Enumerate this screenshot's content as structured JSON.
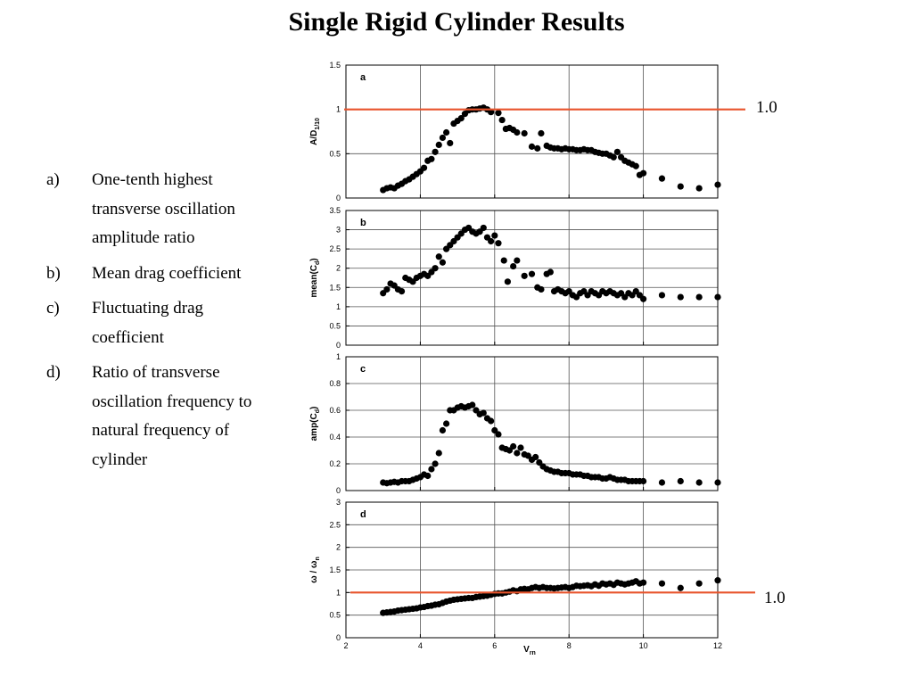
{
  "slide": {
    "title": "Single Rigid Cylinder Results",
    "legend": [
      {
        "letter": "a)",
        "text": "One-tenth highest transverse oscillation amplitude ratio"
      },
      {
        "letter": "b)",
        "text": "Mean drag coefficient"
      },
      {
        "letter": "c)",
        "text": "Fluctuating drag coefficient"
      },
      {
        "letter": "d)",
        "text": "Ratio of transverse oscillation frequency to natural frequency of cylinder"
      }
    ]
  },
  "colors": {
    "marker": "#000000",
    "reference_line": "#e8542c",
    "grid": "#555555",
    "frame": "#000000"
  },
  "chart_data": [
    {
      "type": "scatter",
      "panel_label": "a",
      "ylabel_main": "A/D",
      "ylabel_sub": "1/10",
      "xlim": [
        2,
        12
      ],
      "ylim": [
        0,
        1.5
      ],
      "yticks": [
        0,
        0.5,
        1,
        1.5
      ],
      "yticklabels": [
        "0",
        "0.5",
        "1",
        "1.5"
      ],
      "grid": true,
      "reference_line": {
        "y": 1.0,
        "label": "1.0"
      },
      "x": [
        3.0,
        3.1,
        3.2,
        3.3,
        3.4,
        3.5,
        3.6,
        3.7,
        3.8,
        3.9,
        4.0,
        4.1,
        4.2,
        4.3,
        4.4,
        4.5,
        4.6,
        4.7,
        4.8,
        4.9,
        5.0,
        5.1,
        5.2,
        5.3,
        5.4,
        5.5,
        5.6,
        5.7,
        5.8,
        5.9,
        6.1,
        6.2,
        6.3,
        6.4,
        6.5,
        6.6,
        6.8,
        7.0,
        7.15,
        7.25,
        7.4,
        7.5,
        7.6,
        7.7,
        7.8,
        7.9,
        8.0,
        8.1,
        8.2,
        8.3,
        8.4,
        8.5,
        8.6,
        8.7,
        8.8,
        8.9,
        9.0,
        9.1,
        9.2,
        9.3,
        9.4,
        9.5,
        9.6,
        9.7,
        9.8,
        9.9,
        10.0,
        10.5,
        11.0,
        11.5,
        12.0
      ],
      "y": [
        0.09,
        0.11,
        0.12,
        0.11,
        0.14,
        0.16,
        0.19,
        0.21,
        0.24,
        0.27,
        0.3,
        0.34,
        0.42,
        0.44,
        0.52,
        0.6,
        0.68,
        0.74,
        0.62,
        0.84,
        0.87,
        0.9,
        0.95,
        0.99,
        1.0,
        1.0,
        1.01,
        1.02,
        1.0,
        0.97,
        0.96,
        0.88,
        0.78,
        0.79,
        0.77,
        0.74,
        0.73,
        0.58,
        0.56,
        0.73,
        0.59,
        0.57,
        0.56,
        0.56,
        0.55,
        0.56,
        0.55,
        0.55,
        0.54,
        0.54,
        0.55,
        0.54,
        0.54,
        0.52,
        0.51,
        0.5,
        0.5,
        0.48,
        0.46,
        0.52,
        0.46,
        0.42,
        0.4,
        0.38,
        0.36,
        0.26,
        0.28,
        0.22,
        0.13,
        0.11,
        0.15
      ]
    },
    {
      "type": "scatter",
      "panel_label": "b",
      "ylabel_main": "mean(C",
      "ylabel_sub": "d",
      "ylabel_tail": ")",
      "xlim": [
        2,
        12
      ],
      "ylim": [
        0,
        3.5
      ],
      "yticks": [
        0,
        0.5,
        1,
        1.5,
        2,
        2.5,
        3,
        3.5
      ],
      "yticklabels": [
        "0",
        "0.5",
        "1",
        "1.5",
        "2",
        "2.5",
        "3",
        "3.5"
      ],
      "grid": true,
      "x": [
        3.0,
        3.1,
        3.2,
        3.3,
        3.4,
        3.5,
        3.6,
        3.7,
        3.8,
        3.9,
        4.0,
        4.1,
        4.2,
        4.3,
        4.4,
        4.5,
        4.6,
        4.7,
        4.8,
        4.9,
        5.0,
        5.1,
        5.2,
        5.3,
        5.4,
        5.5,
        5.6,
        5.7,
        5.8,
        5.9,
        6.0,
        6.1,
        6.25,
        6.35,
        6.5,
        6.6,
        6.8,
        7.0,
        7.15,
        7.25,
        7.4,
        7.5,
        7.6,
        7.7,
        7.8,
        7.9,
        8.0,
        8.1,
        8.2,
        8.3,
        8.4,
        8.5,
        8.6,
        8.7,
        8.8,
        8.9,
        9.0,
        9.1,
        9.2,
        9.3,
        9.4,
        9.5,
        9.6,
        9.7,
        9.8,
        9.9,
        10.0,
        10.5,
        11.0,
        11.5,
        12.0
      ],
      "y": [
        1.35,
        1.45,
        1.6,
        1.55,
        1.45,
        1.4,
        1.75,
        1.7,
        1.65,
        1.75,
        1.8,
        1.85,
        1.8,
        1.9,
        2.0,
        2.3,
        2.15,
        2.5,
        2.6,
        2.7,
        2.8,
        2.9,
        3.0,
        3.05,
        2.95,
        2.9,
        2.95,
        3.05,
        2.8,
        2.7,
        2.85,
        2.65,
        2.2,
        1.65,
        2.05,
        2.2,
        1.8,
        1.85,
        1.5,
        1.45,
        1.85,
        1.9,
        1.4,
        1.45,
        1.4,
        1.35,
        1.4,
        1.3,
        1.25,
        1.35,
        1.4,
        1.3,
        1.4,
        1.35,
        1.3,
        1.4,
        1.35,
        1.4,
        1.35,
        1.3,
        1.35,
        1.25,
        1.35,
        1.3,
        1.4,
        1.3,
        1.2,
        1.3,
        1.25,
        1.25,
        1.25
      ]
    },
    {
      "type": "scatter",
      "panel_label": "c",
      "ylabel_main": "amp(C",
      "ylabel_sub": "d",
      "ylabel_tail": ")",
      "xlim": [
        2,
        12
      ],
      "ylim": [
        0,
        1
      ],
      "yticks": [
        0,
        0.2,
        0.4,
        0.6,
        0.8,
        1
      ],
      "yticklabels": [
        "0",
        "0.2",
        "0.4",
        "0.6",
        "0.8",
        "1"
      ],
      "grid": true,
      "x": [
        3.0,
        3.1,
        3.2,
        3.3,
        3.4,
        3.5,
        3.6,
        3.7,
        3.8,
        3.9,
        4.0,
        4.1,
        4.2,
        4.3,
        4.4,
        4.5,
        4.6,
        4.7,
        4.8,
        4.9,
        5.0,
        5.1,
        5.2,
        5.3,
        5.4,
        5.5,
        5.6,
        5.7,
        5.8,
        5.9,
        6.0,
        6.1,
        6.2,
        6.3,
        6.4,
        6.5,
        6.6,
        6.7,
        6.8,
        6.9,
        7.0,
        7.1,
        7.2,
        7.3,
        7.4,
        7.5,
        7.6,
        7.7,
        7.8,
        7.9,
        8.0,
        8.1,
        8.2,
        8.3,
        8.4,
        8.5,
        8.6,
        8.7,
        8.8,
        8.9,
        9.0,
        9.1,
        9.2,
        9.3,
        9.4,
        9.5,
        9.6,
        9.7,
        9.8,
        9.9,
        10.0,
        10.5,
        11.0,
        11.5,
        12.0
      ],
      "y": [
        0.06,
        0.055,
        0.06,
        0.065,
        0.06,
        0.07,
        0.07,
        0.07,
        0.08,
        0.09,
        0.1,
        0.12,
        0.11,
        0.16,
        0.2,
        0.28,
        0.45,
        0.5,
        0.6,
        0.6,
        0.62,
        0.63,
        0.62,
        0.63,
        0.64,
        0.6,
        0.57,
        0.58,
        0.54,
        0.52,
        0.45,
        0.42,
        0.32,
        0.31,
        0.3,
        0.33,
        0.28,
        0.32,
        0.27,
        0.26,
        0.23,
        0.25,
        0.21,
        0.18,
        0.16,
        0.15,
        0.14,
        0.14,
        0.13,
        0.13,
        0.13,
        0.12,
        0.12,
        0.12,
        0.11,
        0.11,
        0.1,
        0.1,
        0.1,
        0.09,
        0.09,
        0.1,
        0.09,
        0.08,
        0.08,
        0.08,
        0.07,
        0.07,
        0.07,
        0.07,
        0.07,
        0.06,
        0.07,
        0.06,
        0.06
      ]
    },
    {
      "type": "scatter",
      "panel_label": "d",
      "ylabel_main": "ω / ω",
      "ylabel_sub": "n",
      "xlabel_main": "V",
      "xlabel_sub": "rn",
      "xlim": [
        2,
        12
      ],
      "ylim": [
        0,
        3
      ],
      "xticks": [
        2,
        4,
        6,
        8,
        10,
        12
      ],
      "xticklabels": [
        "2",
        "4",
        "6",
        "8",
        "10",
        "12"
      ],
      "yticks": [
        0,
        0.5,
        1,
        1.5,
        2,
        2.5,
        3
      ],
      "yticklabels": [
        "0",
        "0.5",
        "1",
        "1.5",
        "2",
        "2.5",
        "3"
      ],
      "grid": true,
      "reference_line": {
        "y": 1.0,
        "label": "1.0"
      },
      "x": [
        3.0,
        3.1,
        3.2,
        3.3,
        3.4,
        3.5,
        3.6,
        3.7,
        3.8,
        3.9,
        4.0,
        4.1,
        4.2,
        4.3,
        4.4,
        4.5,
        4.6,
        4.7,
        4.8,
        4.9,
        5.0,
        5.1,
        5.2,
        5.3,
        5.4,
        5.5,
        5.6,
        5.7,
        5.8,
        5.9,
        6.0,
        6.1,
        6.2,
        6.3,
        6.4,
        6.5,
        6.6,
        6.7,
        6.8,
        6.9,
        7.0,
        7.1,
        7.2,
        7.3,
        7.4,
        7.5,
        7.6,
        7.7,
        7.8,
        7.9,
        8.0,
        8.1,
        8.2,
        8.3,
        8.4,
        8.5,
        8.6,
        8.7,
        8.8,
        8.9,
        9.0,
        9.1,
        9.2,
        9.3,
        9.4,
        9.5,
        9.6,
        9.7,
        9.8,
        9.9,
        10.0,
        10.5,
        11.0,
        11.5,
        12.0
      ],
      "y": [
        0.55,
        0.56,
        0.57,
        0.58,
        0.6,
        0.61,
        0.62,
        0.63,
        0.64,
        0.65,
        0.67,
        0.68,
        0.7,
        0.71,
        0.73,
        0.74,
        0.77,
        0.8,
        0.82,
        0.84,
        0.85,
        0.86,
        0.87,
        0.88,
        0.88,
        0.9,
        0.91,
        0.92,
        0.93,
        0.95,
        0.97,
        0.98,
        0.98,
        1.0,
        1.02,
        1.05,
        1.03,
        1.07,
        1.08,
        1.07,
        1.1,
        1.12,
        1.1,
        1.12,
        1.1,
        1.1,
        1.09,
        1.1,
        1.11,
        1.12,
        1.1,
        1.12,
        1.15,
        1.14,
        1.15,
        1.16,
        1.14,
        1.18,
        1.15,
        1.2,
        1.18,
        1.2,
        1.17,
        1.22,
        1.2,
        1.18,
        1.2,
        1.22,
        1.25,
        1.2,
        1.22,
        1.2,
        1.1,
        1.2,
        1.27
      ]
    }
  ]
}
